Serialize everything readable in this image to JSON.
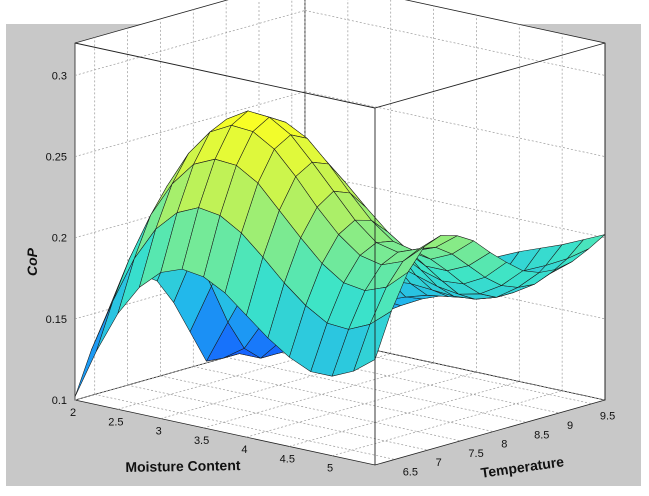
{
  "chart_data": {
    "type": "surface",
    "title": "",
    "xlabel": "Moisture Content",
    "ylabel": "Temperature",
    "zlabel": "CoP",
    "xlim": [
      2,
      5.5
    ],
    "ylim": [
      6.2,
      9.7
    ],
    "zlim": [
      0.1,
      0.32
    ],
    "x_ticks": [
      2,
      2.5,
      3,
      3.5,
      4,
      4.5,
      5
    ],
    "x_tick_labels": [
      "2",
      "2.5",
      "3",
      "3.5",
      "4",
      "4.5",
      "5"
    ],
    "y_ticks": [
      6.5,
      7,
      7.5,
      8,
      8.5,
      9,
      9.5
    ],
    "y_tick_labels": [
      "6.5",
      "7",
      "7.5",
      "8",
      "8.5",
      "9",
      "9.5"
    ],
    "z_ticks": [
      0.1,
      0.15,
      0.2,
      0.25,
      0.3
    ],
    "z_tick_labels": [
      "0.1",
      "0.15",
      "0.2",
      "0.25",
      "0.3"
    ],
    "grid": true,
    "colormap": [
      "#1560ff",
      "#20b4ee",
      "#3ce4c8",
      "#b4f060",
      "#ffff20"
    ],
    "x": [
      2,
      2.25,
      2.5,
      2.75,
      3,
      3.25,
      3.5,
      3.75,
      4,
      4.25,
      4.5,
      4.75,
      5,
      5.25,
      5.5
    ],
    "y": [
      6.2,
      6.45,
      6.7,
      6.95,
      7.2,
      7.45,
      7.7,
      7.95,
      8.2,
      8.45,
      8.7,
      8.95,
      9.2,
      9.45,
      9.7
    ],
    "z": [
      [
        0.102,
        0.133,
        0.159,
        0.178,
        0.19,
        0.195,
        0.193,
        0.186,
        0.175,
        0.164,
        0.155,
        0.149,
        0.149,
        0.155,
        0.165
      ],
      [
        0.128,
        0.161,
        0.19,
        0.211,
        0.224,
        0.23,
        0.228,
        0.22,
        0.208,
        0.195,
        0.184,
        0.176,
        0.175,
        0.181,
        0.192
      ],
      [
        0.149,
        0.184,
        0.214,
        0.236,
        0.251,
        0.257,
        0.256,
        0.248,
        0.234,
        0.22,
        0.207,
        0.198,
        0.196,
        0.201,
        0.213
      ],
      [
        0.162,
        0.198,
        0.229,
        0.252,
        0.268,
        0.275,
        0.274,
        0.266,
        0.252,
        0.236,
        0.222,
        0.212,
        0.209,
        0.214,
        0.226
      ],
      [
        0.166,
        0.201,
        0.233,
        0.257,
        0.273,
        0.281,
        0.28,
        0.272,
        0.258,
        0.243,
        0.228,
        0.217,
        0.214,
        0.219,
        0.23
      ],
      [
        0.159,
        0.194,
        0.225,
        0.249,
        0.266,
        0.274,
        0.274,
        0.267,
        0.254,
        0.239,
        0.225,
        0.215,
        0.212,
        0.217,
        0.227
      ],
      [
        0.143,
        0.177,
        0.207,
        0.231,
        0.248,
        0.257,
        0.258,
        0.252,
        0.24,
        0.227,
        0.215,
        0.206,
        0.204,
        0.21,
        0.221
      ],
      [
        0.122,
        0.153,
        0.182,
        0.205,
        0.222,
        0.233,
        0.235,
        0.231,
        0.222,
        0.211,
        0.201,
        0.194,
        0.194,
        0.2,
        0.211
      ],
      [
        0.101,
        0.128,
        0.154,
        0.176,
        0.193,
        0.204,
        0.209,
        0.207,
        0.201,
        0.193,
        0.186,
        0.182,
        0.183,
        0.19,
        0.202
      ],
      [
        0.1,
        0.109,
        0.13,
        0.149,
        0.165,
        0.177,
        0.183,
        0.184,
        0.181,
        0.177,
        0.173,
        0.171,
        0.174,
        0.182,
        0.194
      ],
      [
        0.1,
        0.1,
        0.114,
        0.129,
        0.143,
        0.154,
        0.161,
        0.165,
        0.166,
        0.165,
        0.164,
        0.165,
        0.169,
        0.178,
        0.19
      ],
      [
        0.1,
        0.1,
        0.106,
        0.118,
        0.129,
        0.139,
        0.147,
        0.152,
        0.156,
        0.158,
        0.16,
        0.163,
        0.169,
        0.177,
        0.189
      ],
      [
        0.1,
        0.1,
        0.104,
        0.114,
        0.124,
        0.133,
        0.141,
        0.148,
        0.153,
        0.158,
        0.162,
        0.166,
        0.172,
        0.181,
        0.191
      ],
      [
        0.1,
        0.1,
        0.107,
        0.117,
        0.126,
        0.135,
        0.143,
        0.151,
        0.158,
        0.164,
        0.169,
        0.174,
        0.18,
        0.187,
        0.196
      ],
      [
        0.1,
        0.104,
        0.114,
        0.124,
        0.133,
        0.142,
        0.151,
        0.16,
        0.168,
        0.174,
        0.18,
        0.185,
        0.19,
        0.196,
        0.202
      ]
    ]
  }
}
